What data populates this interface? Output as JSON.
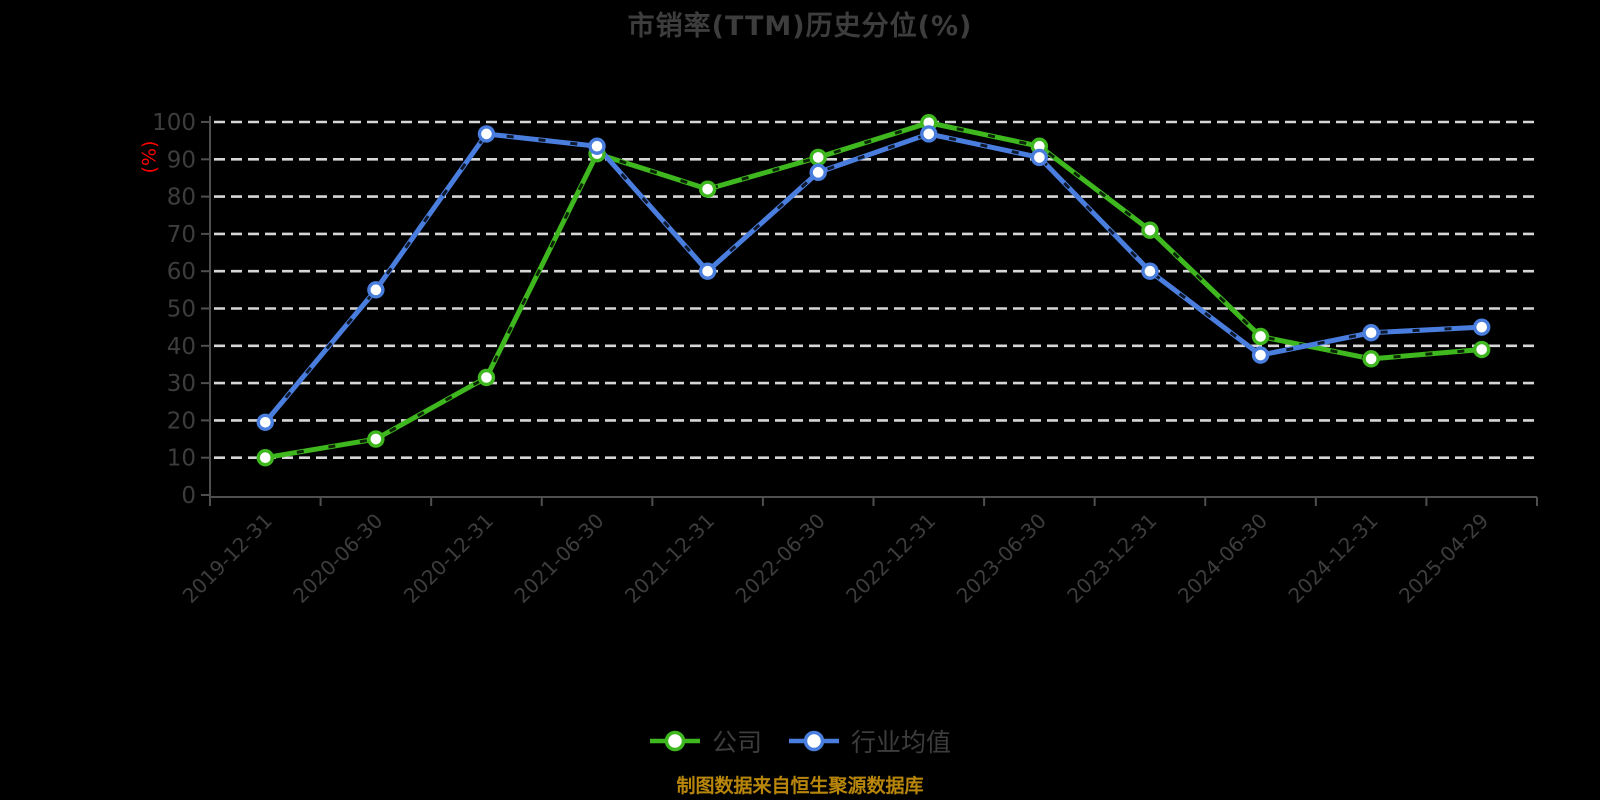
{
  "colors": {
    "background": "#000000",
    "title": "#3D3D3D",
    "label": "#3D3D3D",
    "axis": "#4F4F4F",
    "grid": "#D6D6D6",
    "y_unit": "#FF0000",
    "footer": "#B8860B"
  },
  "chart_data": {
    "type": "line",
    "title": "市销率(TTM)历史分位(%)",
    "xlabel": "",
    "ylabel": "(%)",
    "footer": "制图数据来自恒生聚源数据库",
    "ylim": [
      0,
      100
    ],
    "y_ticks": [
      0,
      10,
      20,
      30,
      40,
      50,
      60,
      70,
      80,
      90,
      100
    ],
    "grid": "horizontal-dashed-white-on-black",
    "legend_position": "bottom",
    "x": [
      "2019-12-31",
      "2020-06-30",
      "2020-12-31",
      "2021-06-30",
      "2021-12-31",
      "2022-06-30",
      "2022-12-31",
      "2023-06-30",
      "2023-12-31",
      "2024-06-30",
      "2024-12-31",
      "2025-04-29"
    ],
    "series": [
      {
        "name": "公司",
        "color": "#3EB81E",
        "values": [
          10,
          15,
          31.5,
          91.5,
          82,
          90.5,
          99.8,
          93.5,
          71,
          42.5,
          36.5,
          39
        ]
      },
      {
        "name": "行业均值",
        "color": "#4A7EDE",
        "values": [
          19.5,
          55,
          96.8,
          93.5,
          60,
          86.5,
          96.8,
          90.5,
          60,
          37.5,
          43.5,
          45
        ]
      }
    ]
  }
}
